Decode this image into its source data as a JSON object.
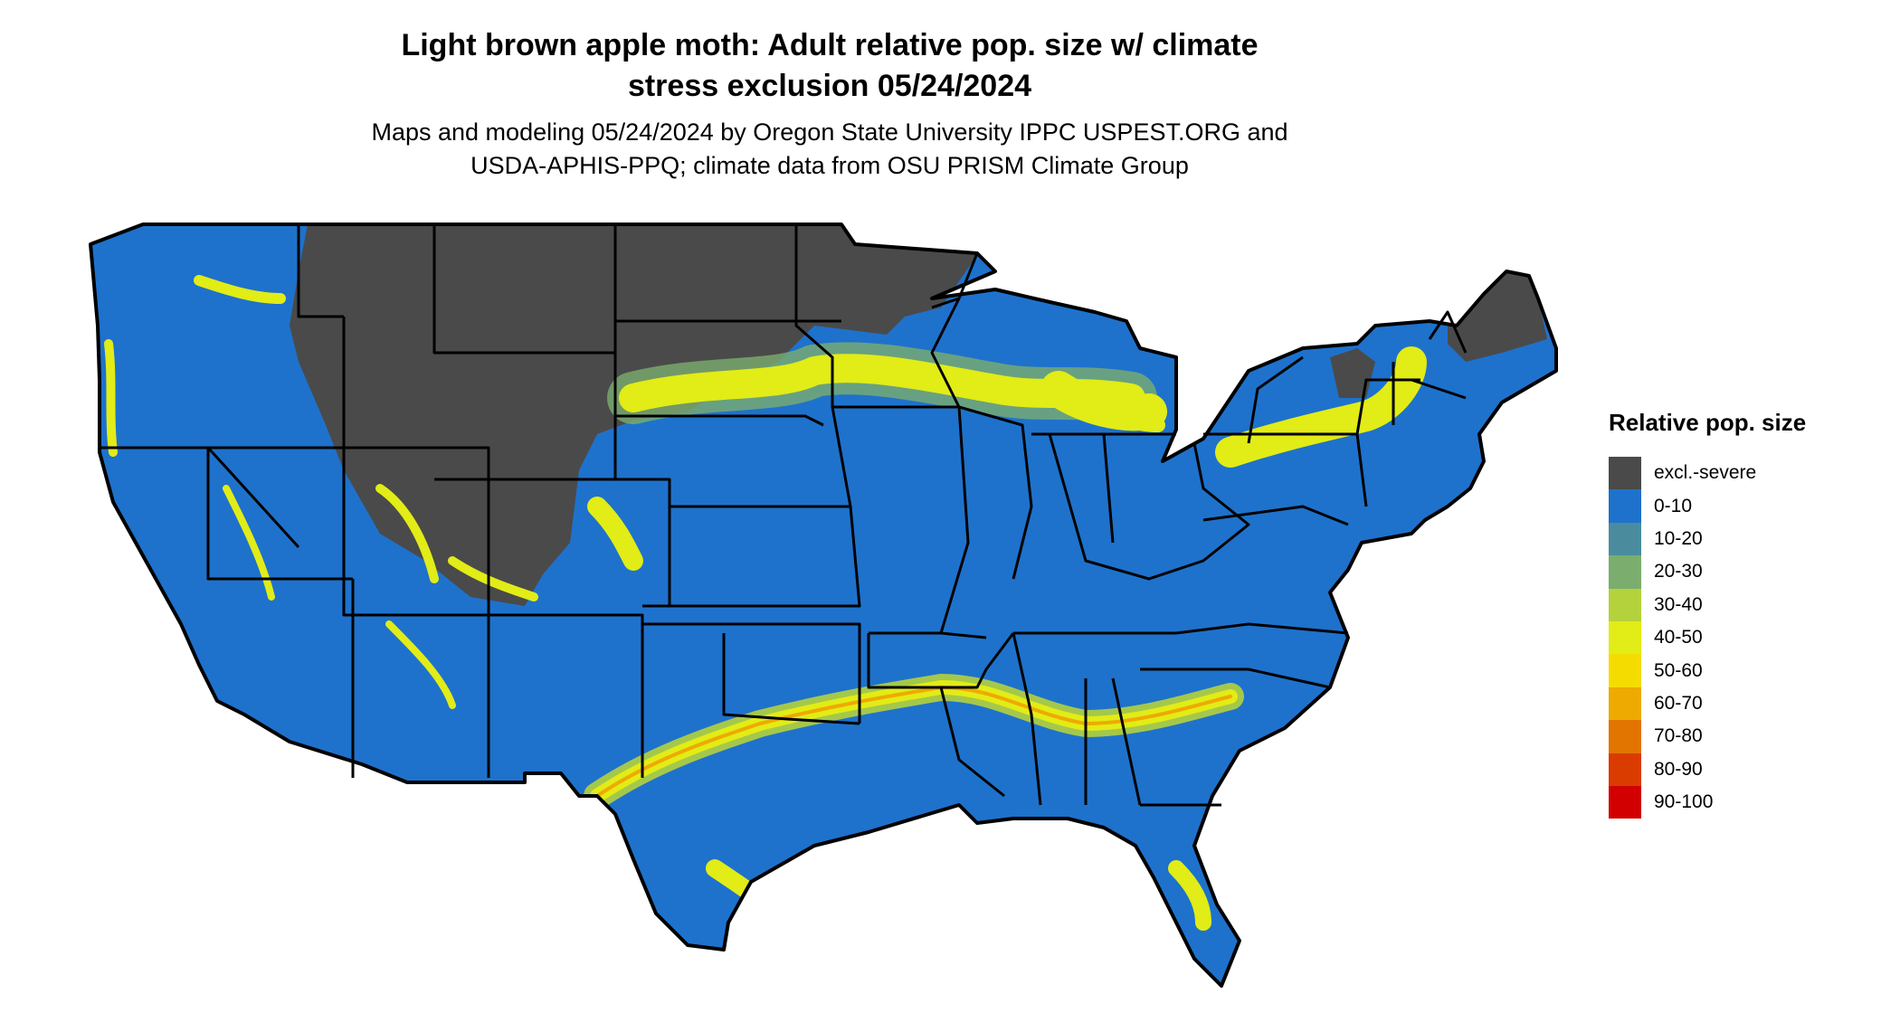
{
  "title": {
    "line1": "Light brown apple moth: Adult relative pop. size w/ climate",
    "line2": "stress exclusion 05/24/2024"
  },
  "subtitle": {
    "line1": "Maps and modeling 05/24/2024 by Oregon State University IPPC USPEST.ORG and",
    "line2": "USDA-APHIS-PPQ; climate data from OSU PRISM Climate Group"
  },
  "legend": {
    "title": "Relative pop. size",
    "items": [
      {
        "label": "excl.-severe",
        "color": "#4a4a4a"
      },
      {
        "label": "0-10",
        "color": "#1e72cc"
      },
      {
        "label": "10-20",
        "color": "#4a8c9e"
      },
      {
        "label": "20-30",
        "color": "#7aad6e"
      },
      {
        "label": "30-40",
        "color": "#b4d23c"
      },
      {
        "label": "40-50",
        "color": "#e2ec16"
      },
      {
        "label": "50-60",
        "color": "#f5dc00"
      },
      {
        "label": "60-70",
        "color": "#eeaa00"
      },
      {
        "label": "70-80",
        "color": "#e27400"
      },
      {
        "label": "80-90",
        "color": "#da3c00"
      },
      {
        "label": "90-100",
        "color": "#d20000"
      }
    ]
  }
}
